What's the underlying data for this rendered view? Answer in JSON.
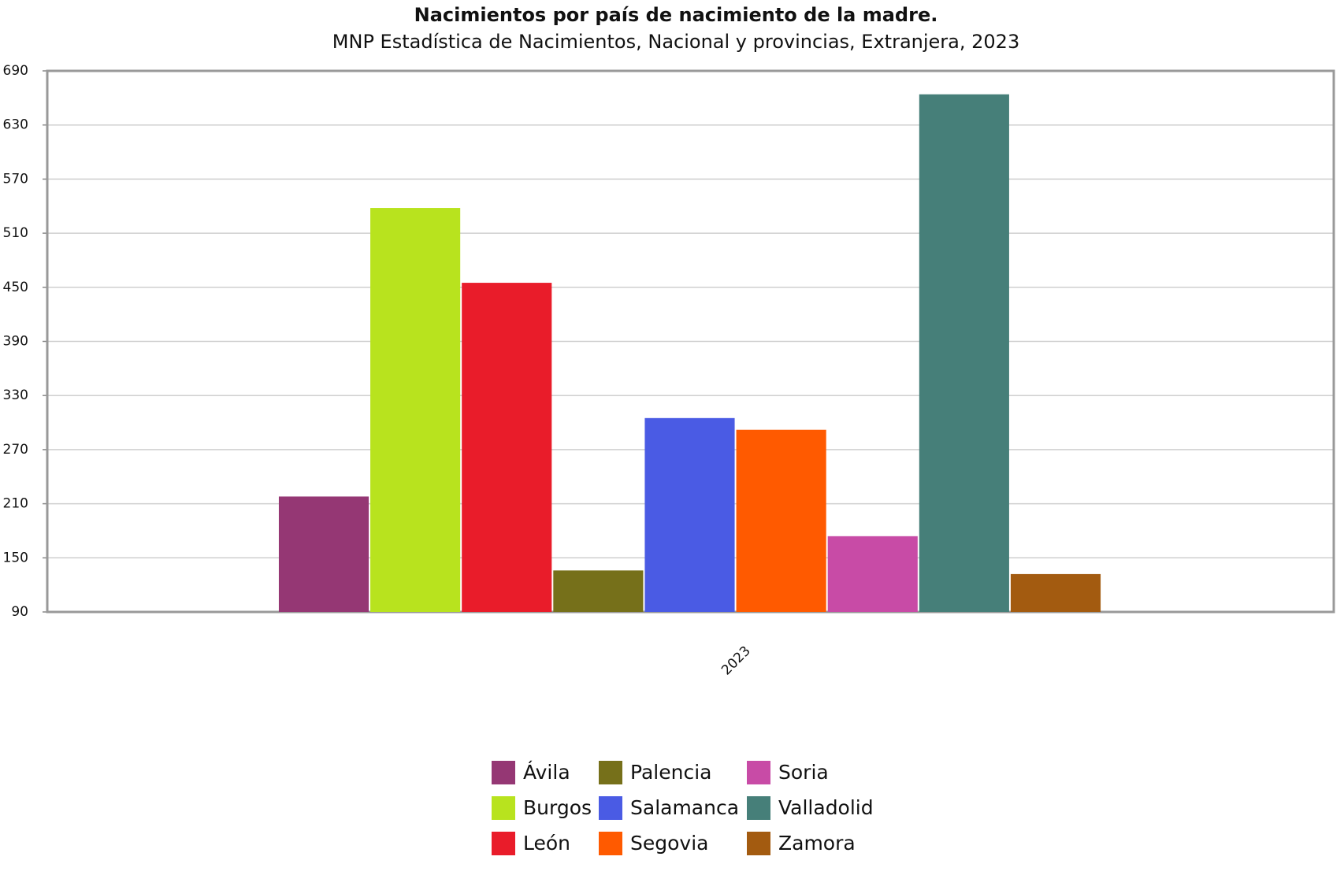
{
  "chart_data": {
    "type": "bar",
    "title": "Nacimientos por país de nacimiento de la madre.",
    "subtitle": "MNP Estadística de Nacimientos, Nacional y provincias, Extranjera, 2023",
    "categories": [
      "2023"
    ],
    "series": [
      {
        "name": "Ávila",
        "color": "#953774",
        "values": [
          218
        ]
      },
      {
        "name": "Burgos",
        "color": "#b8e31e",
        "values": [
          538
        ]
      },
      {
        "name": "León",
        "color": "#e91c2a",
        "values": [
          455
        ]
      },
      {
        "name": "Palencia",
        "color": "#76701a",
        "values": [
          136
        ]
      },
      {
        "name": "Salamanca",
        "color": "#4a5be4",
        "values": [
          305
        ]
      },
      {
        "name": "Segovia",
        "color": "#ff5a00",
        "values": [
          292
        ]
      },
      {
        "name": "Soria",
        "color": "#c84ba6",
        "values": [
          174
        ]
      },
      {
        "name": "Valladolid",
        "color": "#467f79",
        "values": [
          664
        ]
      },
      {
        "name": "Zamora",
        "color": "#a35b10",
        "values": [
          132
        ]
      }
    ],
    "ylim": [
      90,
      690
    ],
    "yticks": [
      90,
      150,
      210,
      270,
      330,
      390,
      450,
      510,
      570,
      630,
      690
    ],
    "grid": true
  }
}
